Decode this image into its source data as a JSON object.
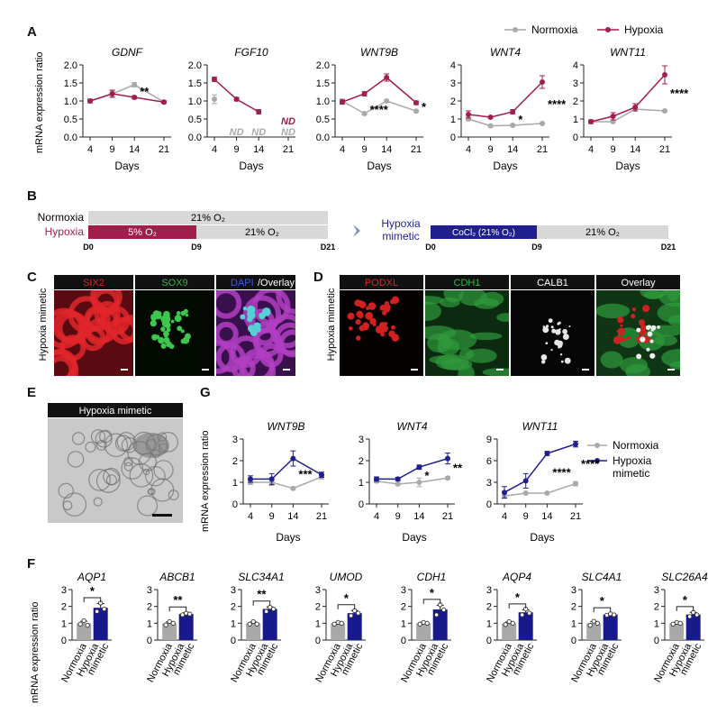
{
  "panel_labels": {
    "A": "A",
    "B": "B",
    "C": "C",
    "D": "D",
    "E": "E",
    "F": "F",
    "G": "G"
  },
  "colors": {
    "normoxia": "#a9a9a9",
    "hypoxia": "#a11d4b",
    "mimetic": "#1f1f8f",
    "bar_gray": "#a9a9a9",
    "bar_navy": "#181a8c",
    "red_stain": "#d8262b",
    "green_stain": "#34b44a",
    "blue_stain": "#3f5ce6"
  },
  "legend_A": [
    {
      "name": "Normoxia",
      "color": "#a9a9a9"
    },
    {
      "name": "Hypoxia",
      "color": "#a11d4b"
    }
  ],
  "legend_G": [
    {
      "name": "Normoxia",
      "color": "#a9a9a9"
    },
    {
      "name": "Hypoxia",
      "color": "#1f1f8f"
    },
    {
      "name": "mimetic",
      "color": "#1f1f8f"
    }
  ],
  "y_label": "mRNA expression ratio",
  "x_label": "Days",
  "panel_B": {
    "normoxia_label": "Normoxia",
    "hypoxia_label": "Hypoxia",
    "normoxia_bar": "21% O₂",
    "hypoxia_seg1": "5% O₂",
    "hypoxia_seg2": "21% O₂",
    "day_start": "D0",
    "day_mid": "D9",
    "day_end": "D21",
    "mimetic_label_1": "Hypoxia",
    "mimetic_label_2": "mimetic",
    "mimetic_seg1": "CoCl₂ (21% O₂)",
    "mimetic_seg2": "21% O₂"
  },
  "panel_C": {
    "side_label": "Hypoxia mimetic",
    "tiles": [
      {
        "title": "SIX2",
        "kind": "six2"
      },
      {
        "title": "SOX9",
        "kind": "sox9"
      },
      {
        "title": "DAPI/Overlay",
        "kind": "overlay"
      }
    ]
  },
  "panel_D": {
    "side_label": "Hypoxia mimetic",
    "tiles": [
      {
        "title": "PODXL",
        "kind": "podxl"
      },
      {
        "title": "CDH1",
        "kind": "cdh1"
      },
      {
        "title": "CALB1",
        "kind": "calb1"
      },
      {
        "title": "Overlay",
        "kind": "overlay2"
      }
    ]
  },
  "panel_E": {
    "title": "Hypoxia mimetic"
  },
  "chart_data": [
    {
      "id": "A1",
      "type": "line",
      "title": "GDNF",
      "x": [
        4,
        9,
        14,
        21
      ],
      "ylim": [
        0,
        2.0
      ],
      "yticks": [
        0,
        0.5,
        1.0,
        1.5,
        2.0
      ],
      "series": [
        {
          "name": "Normoxia",
          "values": [
            1.0,
            1.2,
            1.45,
            0.97
          ],
          "errors": [
            0.05,
            0.08,
            0.06,
            0.03
          ]
        },
        {
          "name": "Hypoxia",
          "values": [
            1.0,
            1.2,
            1.1,
            0.97
          ],
          "errors": [
            0.05,
            0.1,
            0.04,
            0.03
          ]
        }
      ],
      "annotations": [
        {
          "text": "**",
          "day": 14,
          "y": 1.25
        }
      ]
    },
    {
      "id": "A2",
      "type": "line",
      "title": "FGF10",
      "x": [
        4,
        9,
        14,
        21
      ],
      "ylim": [
        0,
        2.0
      ],
      "yticks": [
        0,
        0.5,
        1.0,
        1.5,
        2.0
      ],
      "series": [
        {
          "name": "Normoxia",
          "values": [
            1.05,
            null,
            null,
            null
          ],
          "errors": [
            0.12,
            0,
            0,
            0
          ]
        },
        {
          "name": "Hypoxia",
          "values": [
            1.6,
            1.05,
            0.7,
            null
          ],
          "errors": [
            0.06,
            0.05,
            0.06,
            0
          ]
        }
      ],
      "nd_labels": [
        {
          "text": "ND",
          "day": 9,
          "row": "normoxia"
        },
        {
          "text": "ND",
          "day": 14,
          "row": "normoxia"
        },
        {
          "text": "ND",
          "day": 21,
          "row": "hypoxia"
        },
        {
          "text": "ND",
          "day": 21,
          "row": "normoxia"
        }
      ]
    },
    {
      "id": "A3",
      "type": "line",
      "title": "WNT9B",
      "x": [
        4,
        9,
        14,
        21
      ],
      "ylim": [
        0,
        2.0
      ],
      "yticks": [
        0,
        0.5,
        1.0,
        1.5,
        2.0
      ],
      "series": [
        {
          "name": "Normoxia",
          "values": [
            1.0,
            0.65,
            1.0,
            0.72
          ],
          "errors": [
            0.05,
            0.04,
            0.03,
            0.03
          ]
        },
        {
          "name": "Hypoxia",
          "values": [
            0.97,
            1.2,
            1.65,
            0.95
          ],
          "errors": [
            0.06,
            0.06,
            0.1,
            0.05
          ]
        }
      ],
      "annotations": [
        {
          "text": "****",
          "day": 9,
          "y": 0.75
        },
        {
          "text": "*",
          "day": 21,
          "y": 0.82
        }
      ]
    },
    {
      "id": "A4",
      "type": "line",
      "title": "WNT4",
      "x": [
        4,
        9,
        14,
        21
      ],
      "ylim": [
        0,
        4
      ],
      "yticks": [
        0,
        1,
        2,
        3,
        4
      ],
      "series": [
        {
          "name": "Normoxia",
          "values": [
            1.0,
            0.62,
            0.65,
            0.75
          ],
          "errors": [
            0.08,
            0.03,
            0.04,
            0.04
          ]
        },
        {
          "name": "Hypoxia",
          "values": [
            1.25,
            1.1,
            1.4,
            3.05
          ],
          "errors": [
            0.2,
            0.05,
            0.12,
            0.35
          ]
        }
      ],
      "annotations": [
        {
          "text": "*",
          "day": 14,
          "y": 0.95
        },
        {
          "text": "****",
          "day": 21,
          "y": 1.8
        }
      ]
    },
    {
      "id": "A5",
      "type": "line",
      "title": "WNT11",
      "x": [
        4,
        9,
        14,
        21
      ],
      "ylim": [
        0,
        4
      ],
      "yticks": [
        0,
        1,
        2,
        3,
        4
      ],
      "series": [
        {
          "name": "Normoxia",
          "values": [
            0.85,
            0.85,
            1.55,
            1.45
          ],
          "errors": [
            0.05,
            0.05,
            0.1,
            0.05
          ]
        },
        {
          "name": "Hypoxia",
          "values": [
            0.85,
            1.15,
            1.65,
            3.45
          ],
          "errors": [
            0.1,
            0.2,
            0.2,
            0.5
          ]
        }
      ],
      "annotations": [
        {
          "text": "****",
          "day": 21,
          "y": 2.4
        }
      ]
    },
    {
      "id": "G1",
      "type": "line",
      "title": "WNT9B",
      "x": [
        4,
        9,
        14,
        21
      ],
      "ylim": [
        0,
        3
      ],
      "yticks": [
        0,
        1,
        2,
        3
      ],
      "series": [
        {
          "name": "Normoxia",
          "values": [
            1.0,
            1.0,
            0.72,
            1.25
          ],
          "errors": [
            0.1,
            0.15,
            0.06,
            0.1
          ]
        },
        {
          "name": "Hypoxia mimetic",
          "values": [
            1.15,
            1.15,
            2.1,
            1.35
          ],
          "errors": [
            0.15,
            0.25,
            0.35,
            0.12
          ]
        }
      ],
      "annotations": [
        {
          "text": "***",
          "day": 14,
          "y": 1.35
        }
      ]
    },
    {
      "id": "G2",
      "type": "line",
      "title": "WNT4",
      "x": [
        4,
        9,
        14,
        21
      ],
      "ylim": [
        0,
        3
      ],
      "yticks": [
        0,
        1,
        2,
        3
      ],
      "series": [
        {
          "name": "Normoxia",
          "values": [
            1.05,
            0.92,
            1.0,
            1.2
          ],
          "errors": [
            0.06,
            0.05,
            0.2,
            0.05
          ]
        },
        {
          "name": "Hypoxia mimetic",
          "values": [
            1.15,
            1.15,
            1.7,
            2.1
          ],
          "errors": [
            0.1,
            0.08,
            0.1,
            0.25
          ]
        }
      ],
      "annotations": [
        {
          "text": "*",
          "day": 14,
          "y": 1.3
        },
        {
          "text": "**",
          "day": 21,
          "y": 1.65
        }
      ]
    },
    {
      "id": "G3",
      "type": "line",
      "title": "WNT11",
      "x": [
        4,
        9,
        14,
        21
      ],
      "ylim": [
        0,
        9
      ],
      "yticks": [
        0,
        3,
        6,
        9
      ],
      "series": [
        {
          "name": "Normoxia",
          "values": [
            1.1,
            1.5,
            1.5,
            2.8
          ],
          "errors": [
            0.1,
            0.1,
            0.1,
            0.3
          ]
        },
        {
          "name": "Hypoxia mimetic",
          "values": [
            1.6,
            3.2,
            7.0,
            8.3
          ],
          "errors": [
            0.8,
            1.0,
            0.3,
            0.4
          ]
        }
      ],
      "annotations": [
        {
          "text": "****",
          "day": 14,
          "y": 4.3
        },
        {
          "text": "****",
          "day": 21,
          "y": 5.5
        }
      ]
    },
    {
      "id": "F1",
      "type": "bar",
      "title": "AQP1",
      "categories": [
        "Normoxia",
        "Hypoxia mimetic"
      ],
      "values": [
        1.0,
        1.92
      ],
      "errors": [
        0.12,
        0.25
      ],
      "points": [
        [
          0.95,
          1.15,
          0.88
        ],
        [
          1.7,
          2.2,
          1.85
        ]
      ],
      "sig": "*",
      "ylim": [
        0,
        3
      ],
      "yticks": [
        0,
        1,
        2,
        3
      ]
    },
    {
      "id": "F2",
      "type": "bar",
      "title": "ABCB1",
      "categories": [
        "Normoxia",
        "Hypoxia mimetic"
      ],
      "values": [
        1.0,
        1.55
      ],
      "errors": [
        0.08,
        0.07
      ],
      "points": [
        [
          0.9,
          1.1,
          1.0
        ],
        [
          1.5,
          1.6,
          1.55
        ]
      ],
      "sig": "**",
      "ylim": [
        0,
        3
      ],
      "yticks": [
        0,
        1,
        2,
        3
      ]
    },
    {
      "id": "F3",
      "type": "bar",
      "title": "SLC34A1",
      "categories": [
        "Normoxia",
        "Hypoxia mimetic"
      ],
      "values": [
        1.0,
        1.85
      ],
      "errors": [
        0.07,
        0.12
      ],
      "points": [
        [
          0.95,
          1.1,
          0.95
        ],
        [
          1.7,
          1.95,
          1.85
        ]
      ],
      "sig": "**",
      "ylim": [
        0,
        3
      ],
      "yticks": [
        0,
        1,
        2,
        3
      ]
    },
    {
      "id": "F4",
      "type": "bar",
      "title": "UMOD",
      "categories": [
        "Normoxia",
        "Hypoxia mimetic"
      ],
      "values": [
        1.0,
        1.6
      ],
      "errors": [
        0.05,
        0.15
      ],
      "points": [
        [
          0.95,
          1.05,
          1.0
        ],
        [
          1.45,
          1.75,
          1.6
        ]
      ],
      "sig": "*",
      "ylim": [
        0,
        3
      ],
      "yticks": [
        0,
        1,
        2,
        3
      ]
    },
    {
      "id": "F5",
      "type": "bar",
      "title": "CDH1",
      "categories": [
        "Normoxia",
        "Hypoxia mimetic"
      ],
      "values": [
        1.0,
        1.82
      ],
      "errors": [
        0.06,
        0.25
      ],
      "points": [
        [
          0.95,
          1.05,
          1.0
        ],
        [
          1.5,
          2.1,
          1.8
        ]
      ],
      "sig": "*",
      "ylim": [
        0,
        3
      ],
      "yticks": [
        0,
        1,
        2,
        3
      ]
    },
    {
      "id": "F6",
      "type": "bar",
      "title": "AQP4",
      "categories": [
        "Normoxia",
        "Hypoxia mimetic"
      ],
      "values": [
        1.0,
        1.65
      ],
      "errors": [
        0.08,
        0.15
      ],
      "points": [
        [
          0.92,
          1.1,
          1.0
        ],
        [
          1.5,
          1.85,
          1.6
        ]
      ],
      "sig": "*",
      "ylim": [
        0,
        3
      ],
      "yticks": [
        0,
        1,
        2,
        3
      ]
    },
    {
      "id": "F7",
      "type": "bar",
      "title": "SLC4A1",
      "categories": [
        "Normoxia",
        "Hypoxia mimetic"
      ],
      "values": [
        1.0,
        1.52
      ],
      "errors": [
        0.1,
        0.05
      ],
      "points": [
        [
          0.88,
          1.12,
          1.0
        ],
        [
          1.48,
          1.56,
          1.5
        ]
      ],
      "sig": "*",
      "ylim": [
        0,
        3
      ],
      "yticks": [
        0,
        1,
        2,
        3
      ]
    },
    {
      "id": "F8",
      "type": "bar",
      "title": "SLC26A4",
      "categories": [
        "Normoxia",
        "Hypoxia mimetic"
      ],
      "values": [
        1.0,
        1.52
      ],
      "errors": [
        0.05,
        0.12
      ],
      "points": [
        [
          0.95,
          1.05,
          1.0
        ],
        [
          1.4,
          1.65,
          1.5
        ]
      ],
      "sig": "*",
      "ylim": [
        0,
        3
      ],
      "yticks": [
        0,
        1,
        2,
        3
      ]
    }
  ]
}
